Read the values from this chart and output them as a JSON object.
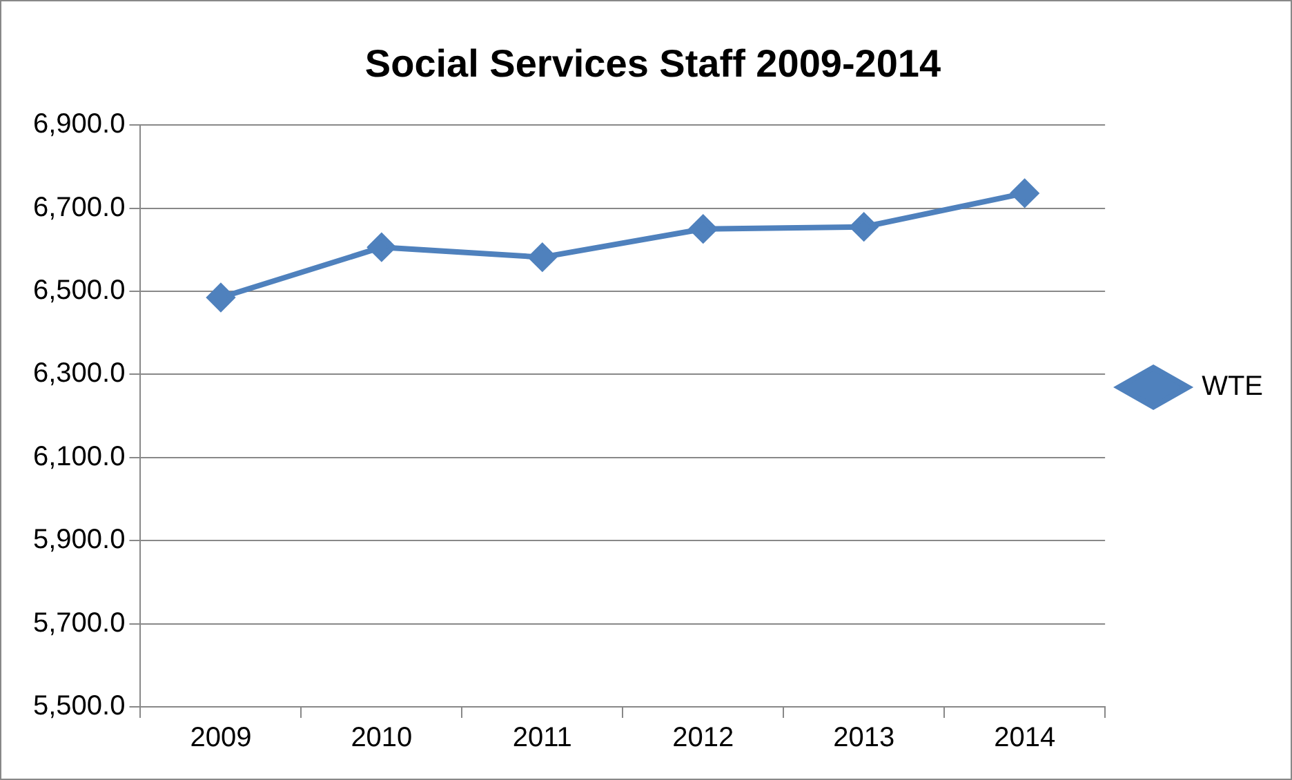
{
  "chart_data": {
    "type": "line",
    "title": "Social Services Staff 2009-2014",
    "categories": [
      "2009",
      "2010",
      "2011",
      "2012",
      "2013",
      "2014"
    ],
    "series": [
      {
        "name": "WTE",
        "color": "#4f81bd",
        "values": [
          6485,
          6606,
          6582,
          6650,
          6655,
          6736
        ]
      }
    ],
    "ylim": [
      5500,
      6900
    ],
    "yticks": [
      {
        "value": 5500,
        "label": "5,500.0"
      },
      {
        "value": 5700,
        "label": "5,700.0"
      },
      {
        "value": 5900,
        "label": "5,900.0"
      },
      {
        "value": 6100,
        "label": "6,100.0"
      },
      {
        "value": 6300,
        "label": "6,300.0"
      },
      {
        "value": 6500,
        "label": "6,500.0"
      },
      {
        "value": 6700,
        "label": "6,700.0"
      },
      {
        "value": 6900,
        "label": "6,900.0"
      }
    ],
    "grid": "y",
    "legend": "right",
    "marker": "diamond",
    "line_style": "solid"
  }
}
